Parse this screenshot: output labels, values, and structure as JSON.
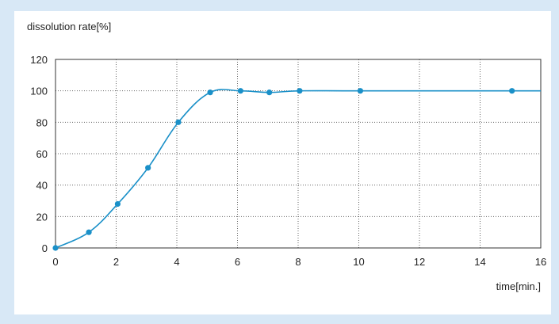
{
  "chart_data": {
    "type": "line",
    "ylabel": "dissolution rate[%]",
    "xlabel": "time[min.]",
    "xlim": [
      0,
      16
    ],
    "ylim": [
      0,
      120
    ],
    "xticks": [
      0,
      2,
      4,
      6,
      8,
      10,
      12,
      14,
      16
    ],
    "yticks": [
      0,
      20,
      40,
      60,
      80,
      100,
      120
    ],
    "grid": true,
    "series": [
      {
        "x": [
          0,
          1.1,
          2.05,
          3.05,
          4.05,
          5.1,
          6.1,
          7.05,
          8.05,
          10.05,
          15.05
        ],
        "y": [
          0,
          10,
          28,
          51,
          80,
          99,
          100,
          99,
          100,
          100,
          100
        ]
      }
    ],
    "line_tail_to": 16,
    "color": "#1a90c8",
    "background": "#d8e8f6"
  }
}
